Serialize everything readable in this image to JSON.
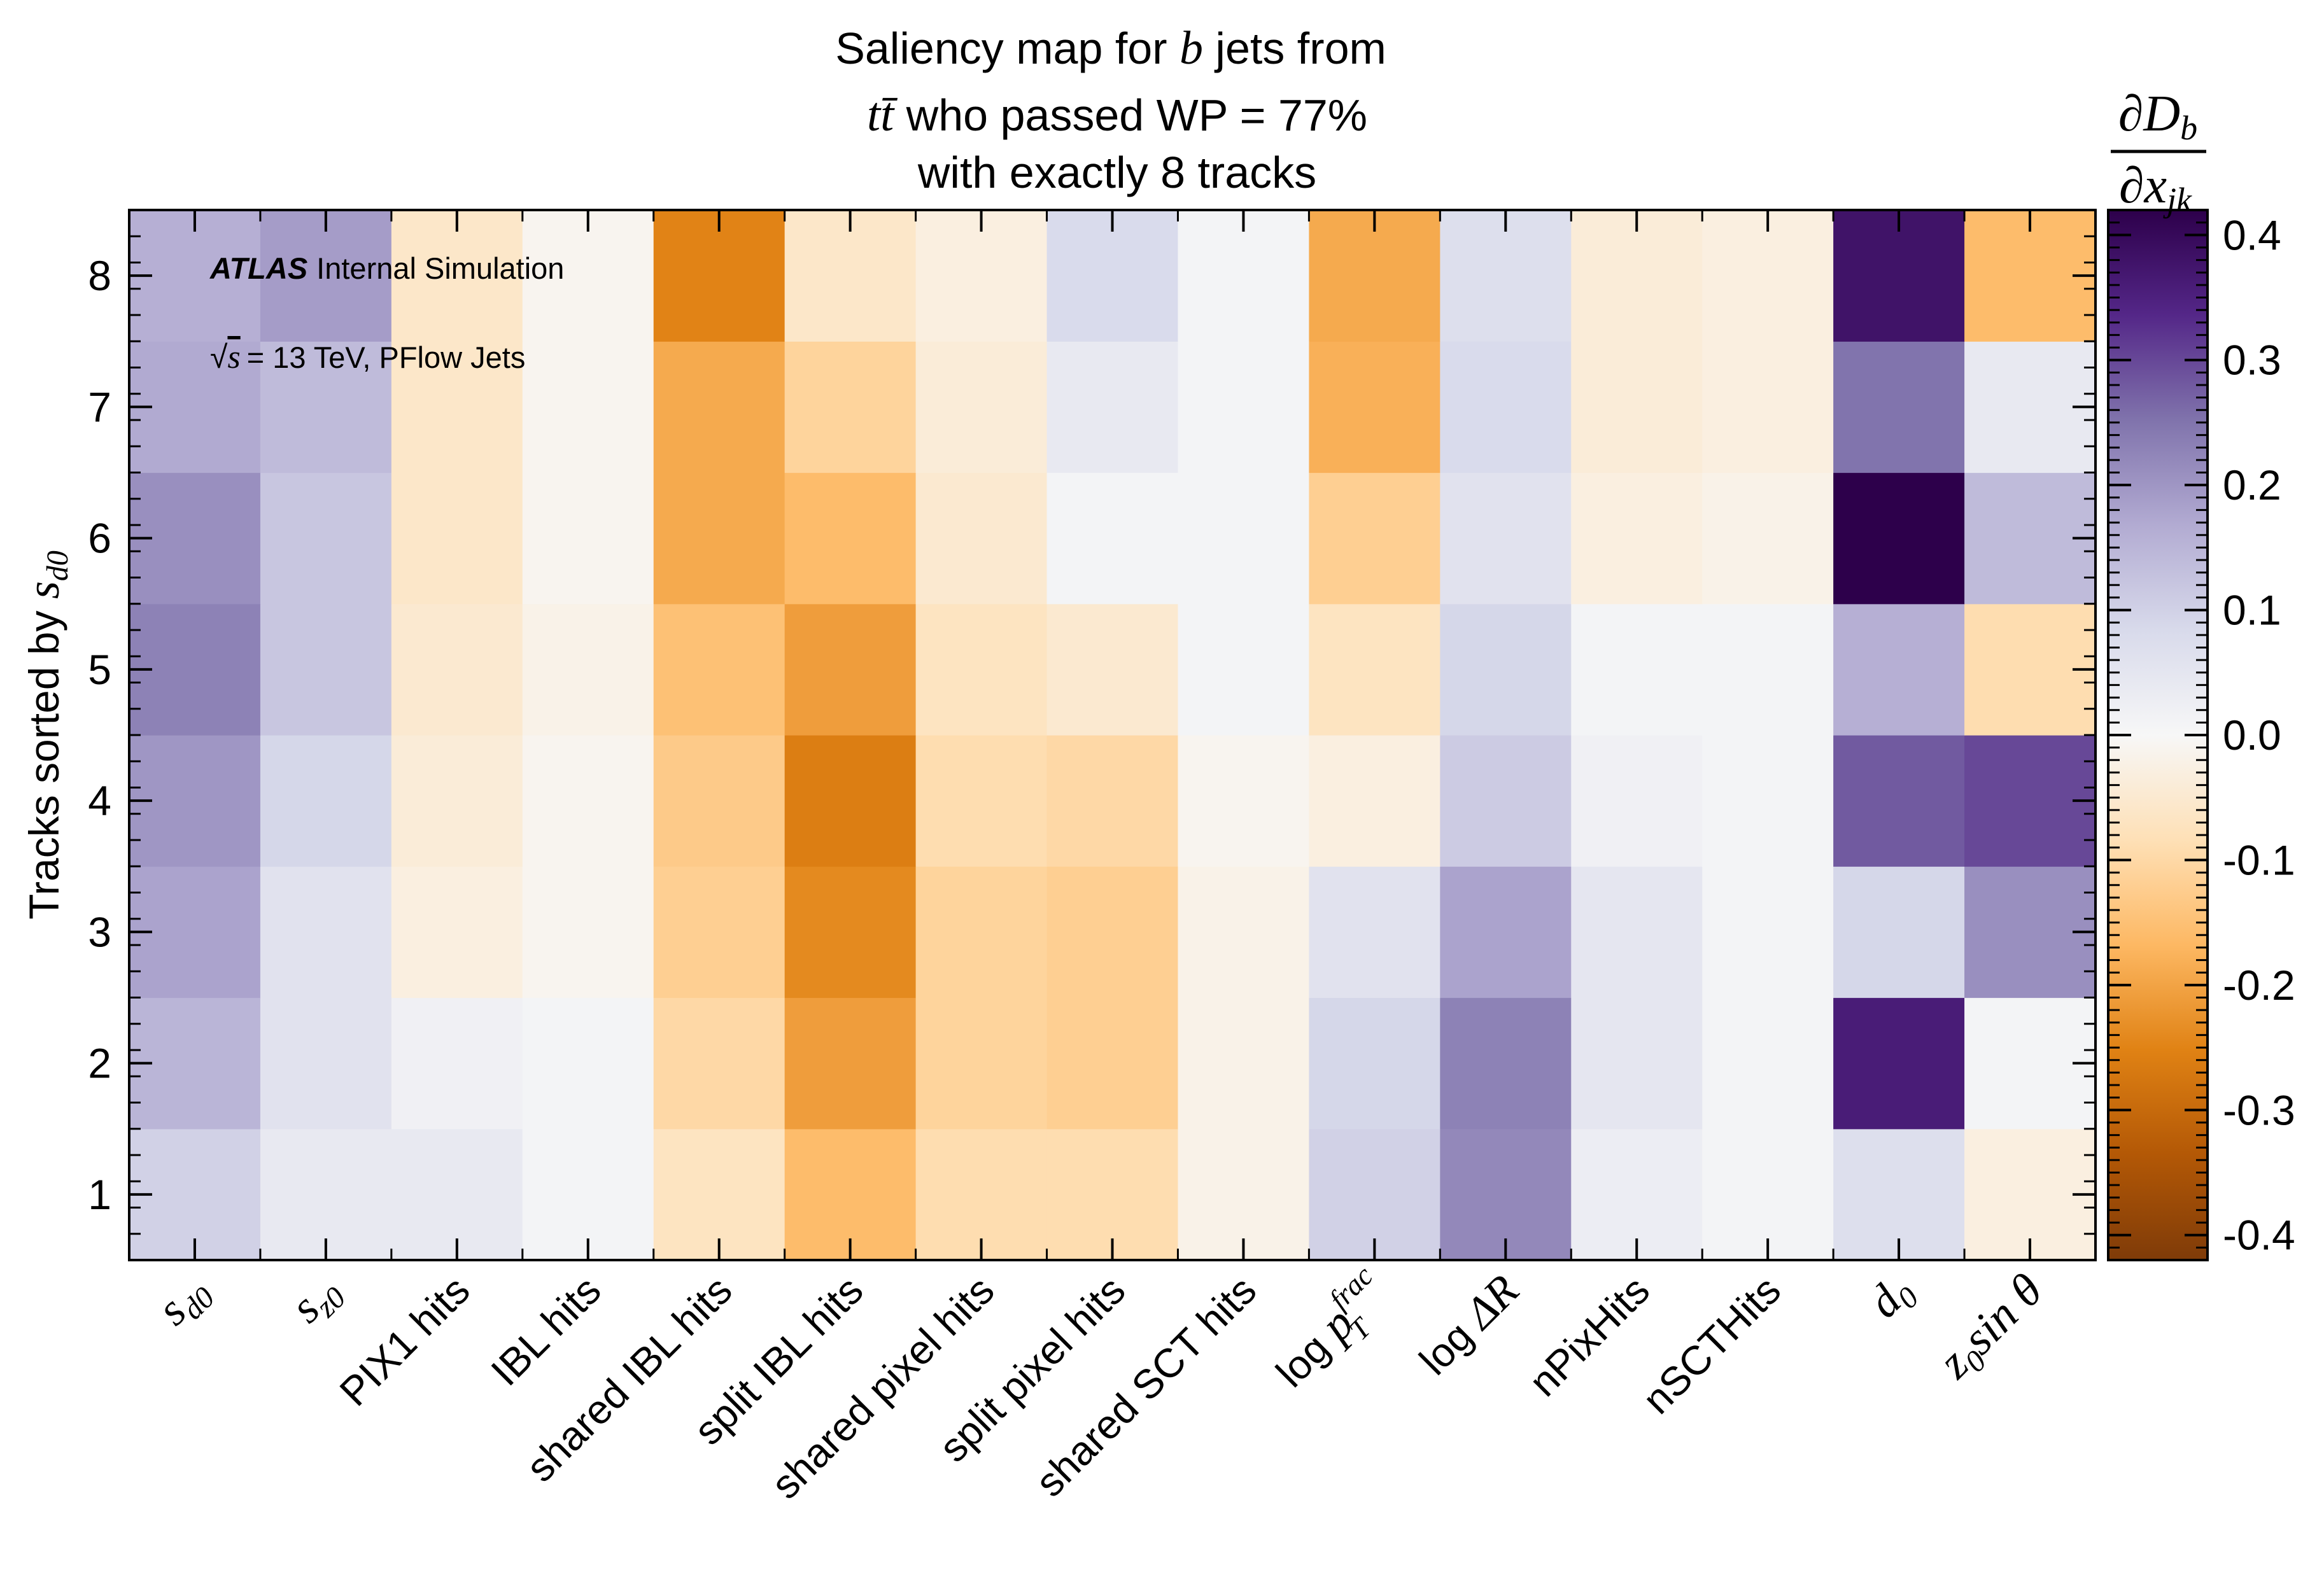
{
  "chart_data": {
    "type": "heatmap",
    "title_lines": [
      "Saliency map for b jets from",
      "tt̄ who passed WP = 77%",
      "with exactly 8 tracks"
    ],
    "x_categories": [
      "s_d0",
      "s_z0",
      "PIX1 hits",
      "IBL hits",
      "shared IBL hits",
      "split IBL hits",
      "shared pixel hits",
      "split pixel hits",
      "shared SCT hits",
      "log p_T^frac",
      "log ΔR",
      "nPixHits",
      "nSCTHits",
      "d_0",
      "z_0 sin θ"
    ],
    "y_categories": [
      "1",
      "2",
      "3",
      "4",
      "5",
      "6",
      "7",
      "8"
    ],
    "ylabel": "Tracks sorted by s_d0",
    "colorbar_label": "∂D_b / ∂x_jk",
    "colorbar_range": [
      -0.42,
      0.42
    ],
    "colorbar_ticks": [
      -0.4,
      -0.3,
      -0.2,
      -0.1,
      0.0,
      0.1,
      0.2,
      0.3,
      0.4
    ],
    "colorbar_tick_labels": [
      "-0.4",
      "-0.3",
      "-0.2",
      "-0.1",
      "0.0",
      "0.1",
      "0.2",
      "0.3",
      "0.4"
    ],
    "values_by_track": [
      [
        0.1,
        0.04,
        0.04,
        0.01,
        -0.07,
        -0.16,
        -0.09,
        -0.09,
        -0.02,
        0.1,
        0.22,
        0.03,
        0.01,
        0.07,
        -0.03
      ],
      [
        0.15,
        0.06,
        0.02,
        0.01,
        -0.1,
        -0.21,
        -0.11,
        -0.12,
        -0.02,
        0.09,
        0.23,
        0.05,
        0.01,
        0.36,
        0.01
      ],
      [
        0.18,
        0.06,
        -0.03,
        -0.01,
        -0.12,
        -0.24,
        -0.11,
        -0.12,
        -0.02,
        0.06,
        0.18,
        0.05,
        0.01,
        0.09,
        0.21
      ],
      [
        0.2,
        0.09,
        -0.04,
        -0.01,
        -0.13,
        -0.26,
        -0.09,
        -0.1,
        -0.01,
        -0.03,
        0.11,
        0.02,
        0.01,
        0.28,
        0.3
      ],
      [
        0.23,
        0.12,
        -0.05,
        -0.02,
        -0.15,
        -0.21,
        -0.07,
        -0.05,
        0.01,
        -0.07,
        0.09,
        0.01,
        0.01,
        0.16,
        -0.09
      ],
      [
        0.21,
        0.12,
        -0.06,
        -0.01,
        -0.19,
        -0.16,
        -0.05,
        0.01,
        0.01,
        -0.12,
        0.06,
        -0.03,
        -0.02,
        0.43,
        0.14
      ],
      [
        0.17,
        0.14,
        -0.06,
        -0.01,
        -0.19,
        -0.11,
        -0.04,
        0.04,
        0.01,
        -0.18,
        0.08,
        -0.04,
        -0.03,
        0.25,
        0.04
      ],
      [
        0.16,
        0.19,
        -0.06,
        -0.01,
        -0.25,
        -0.06,
        -0.03,
        0.08,
        0.01,
        -0.19,
        0.07,
        -0.04,
        -0.03,
        0.38,
        -0.16
      ]
    ]
  },
  "annotations": {
    "experiment": "ATLAS",
    "status": "Internal Simulation",
    "energy": "= 13 TeV, PFlow Jets"
  }
}
